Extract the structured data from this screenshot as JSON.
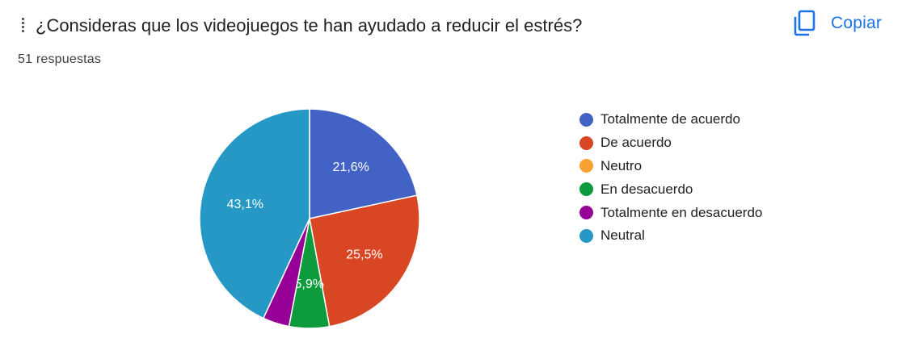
{
  "question": {
    "title": "¿Consideras que los videojuegos te han ayudado a reducir el estrés?",
    "responses": "51 respuestas"
  },
  "actions": {
    "copy_label": "Copiar",
    "copy_icon": "copy-icon",
    "accent_color": "#1a73e8"
  },
  "chart_data": {
    "type": "pie",
    "start_angle_deg": 90,
    "direction": "clockwise",
    "legend_position": "right",
    "categories": [
      "Totalmente de acuerdo",
      "De acuerdo",
      "Neutro",
      "En desacuerdo",
      "Totalmente en desacuerdo",
      "Neutral"
    ],
    "values": [
      21.6,
      25.5,
      0,
      5.9,
      3.9,
      43.1
    ],
    "labels": [
      "21,6%",
      "25,5%",
      "",
      "5,9%",
      "",
      "43,1%"
    ],
    "colors": [
      "#4262c6",
      "#d94623",
      "#f7a133",
      "#0d9b3e",
      "#970096",
      "#2598c5"
    ]
  }
}
